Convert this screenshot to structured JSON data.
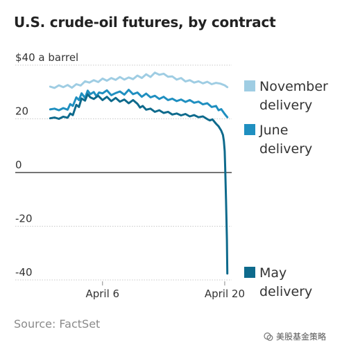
{
  "title": "U.S. crude-oil futures, by contract",
  "source": "Source: FactSet",
  "watermark": "美股基金策略",
  "colors": {
    "november": "#9fcde3",
    "june": "#1f8fc0",
    "may": "#0e6a8c",
    "zero_line": "#222222",
    "grid": "#c8c8c8"
  },
  "chart_data": {
    "type": "line",
    "title": "U.S. crude-oil futures, by contract",
    "ylabel": "",
    "xlabel": "",
    "ylim": [
      -40,
      40
    ],
    "yticks": [
      40,
      20,
      0,
      -20,
      -40
    ],
    "ytick_labels": [
      "$40 a barrel",
      "20",
      "0",
      "-20",
      "-40"
    ],
    "xticks": [
      6,
      20
    ],
    "xtick_labels": [
      "April 6",
      "April 20"
    ],
    "xlim": [
      -0.5,
      20.8
    ],
    "grid": true,
    "legend": "right",
    "series": [
      {
        "name": "November delivery",
        "color_key": "november",
        "x": [
          0,
          0.5,
          1,
          1.5,
          2,
          2.5,
          3,
          3.5,
          4,
          4.5,
          5,
          5.5,
          6,
          6.5,
          7,
          7.5,
          8,
          8.5,
          9,
          9.5,
          10,
          10.5,
          11,
          11.5,
          12,
          12.5,
          13,
          13.5,
          14,
          14.5,
          15,
          15.5,
          16,
          16.5,
          17,
          17.5,
          18,
          18.5,
          19,
          19.5,
          20,
          20.3
        ],
        "values": [
          32,
          31.5,
          32.5,
          31.8,
          32.6,
          31.6,
          32.9,
          32.4,
          34,
          33.5,
          34.4,
          33.7,
          35,
          34.2,
          35.2,
          34.5,
          35.6,
          34.6,
          35.4,
          34.8,
          36.1,
          35.2,
          36.6,
          35.6,
          37.2,
          36.4,
          36.8,
          35.7,
          35.8,
          34.6,
          35.2,
          33.9,
          34.4,
          33.5,
          34,
          33.2,
          33.8,
          32.9,
          33.4,
          33.1,
          32.5,
          31.8
        ]
      },
      {
        "name": "June delivery",
        "color_key": "june",
        "x": [
          0,
          0.5,
          1,
          1.5,
          2,
          2.3,
          2.6,
          3,
          3.3,
          3.6,
          4,
          4.3,
          4.6,
          5,
          5.3,
          5.6,
          6,
          6.5,
          7,
          7.5,
          8,
          8.5,
          9,
          9.5,
          10,
          10.5,
          11,
          11.5,
          12,
          12.5,
          13,
          13.5,
          14,
          14.5,
          15,
          15.5,
          16,
          16.5,
          17,
          17.5,
          18,
          18.5,
          19,
          19.3,
          19.6,
          20,
          20.3
        ],
        "values": [
          23.5,
          23.8,
          23.2,
          24,
          23.4,
          25.5,
          24.8,
          28,
          27,
          29.5,
          27.8,
          30.5,
          29.2,
          30,
          28.4,
          29.8,
          29.5,
          30.6,
          28.8,
          29.6,
          30.2,
          29,
          30.8,
          29.2,
          29.8,
          28.2,
          29.4,
          28,
          28.6,
          27.4,
          28.2,
          27,
          27.5,
          26.6,
          27.2,
          26.3,
          27,
          26,
          26.4,
          25.4,
          25.8,
          24.4,
          24.8,
          23.2,
          23.6,
          21.8,
          20.6
        ]
      },
      {
        "name": "May delivery",
        "color_key": "may",
        "x": [
          0,
          0.5,
          1,
          1.5,
          2,
          2.3,
          2.6,
          3,
          3.3,
          3.6,
          4,
          4.3,
          4.6,
          5,
          5.5,
          6,
          6.5,
          7,
          7.5,
          8,
          8.5,
          9,
          9.5,
          10,
          10.3,
          10.6,
          11,
          11.5,
          12,
          12.5,
          13,
          13.5,
          14,
          14.5,
          15,
          15.5,
          16,
          16.5,
          17,
          17.5,
          18,
          18.3,
          18.6,
          19,
          19.3,
          19.6,
          19.8,
          19.9,
          20,
          20.05,
          20.15,
          20.25,
          20.3
        ],
        "values": [
          20.2,
          20.5,
          20,
          20.8,
          20.4,
          22,
          21.4,
          25.2,
          24.4,
          27.6,
          26.8,
          29.2,
          28,
          27.4,
          28.6,
          27,
          28.2,
          26.6,
          27.8,
          26.4,
          27.2,
          25.8,
          27,
          25.6,
          24.2,
          24.8,
          23.4,
          23.8,
          22.6,
          23.2,
          22.2,
          22.6,
          21.6,
          22,
          21.3,
          21.8,
          20.9,
          21.4,
          20.6,
          20.9,
          19.9,
          19.4,
          19.8,
          18.2,
          17.2,
          15.6,
          14,
          11.8,
          8,
          2,
          -10,
          -25,
          -37.6
        ]
      }
    ]
  },
  "legend": {
    "november": [
      "November",
      "delivery"
    ],
    "june": [
      "June",
      "delivery"
    ],
    "may": [
      "May",
      "delivery"
    ]
  }
}
